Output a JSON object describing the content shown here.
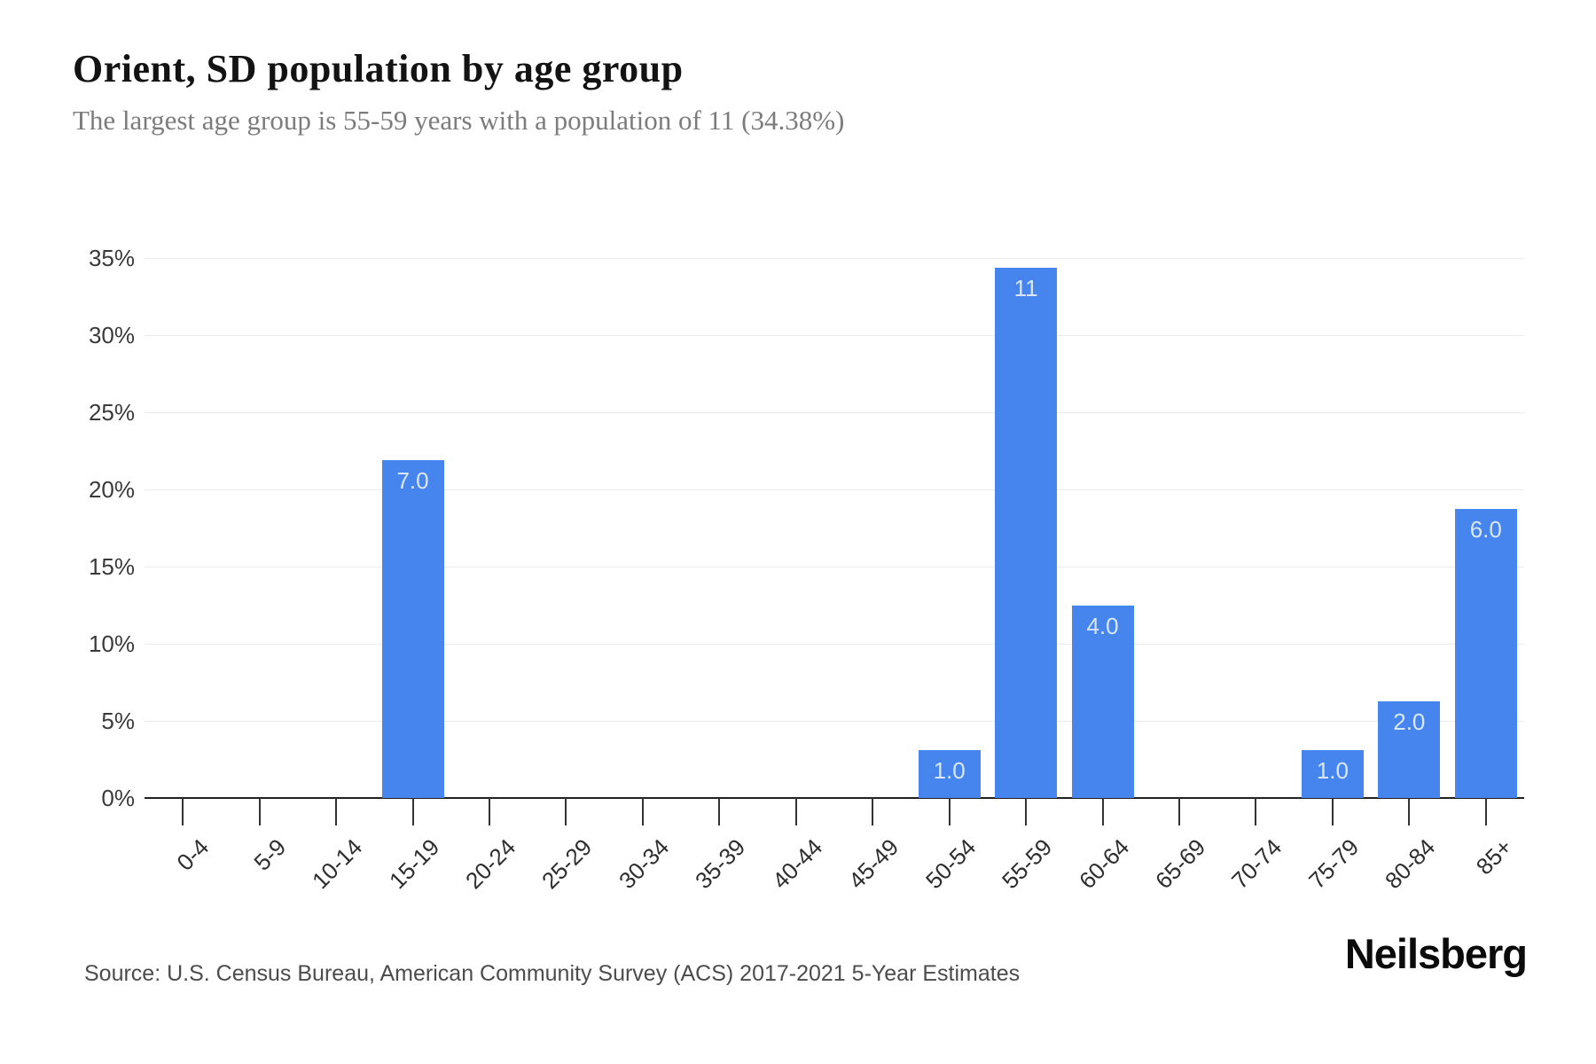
{
  "header": {
    "title": "Orient, SD population by age group",
    "subtitle": "The largest age group is 55-59 years with a population of 11 (34.38%)"
  },
  "footer": {
    "source": "Source: U.S. Census Bureau, American Community Survey (ACS) 2017-2021 5-Year Estimates",
    "brand": "Neilsberg"
  },
  "colors": {
    "bar": "#4685ee",
    "bar_label": "#d9e7fb",
    "grid": "#ececec",
    "axis": "#212121",
    "tick": "#333333",
    "axis_label": "#3a3a3a",
    "title": "#131313",
    "subtitle": "#7c7c7c",
    "source": "#4c4c4c"
  },
  "chart_data": {
    "type": "bar",
    "title": "Orient, SD population by age group",
    "subtitle": "The largest age group is 55-59 years with a population of 11 (34.38%)",
    "xlabel": "",
    "ylabel": "",
    "categories": [
      "0-4",
      "5-9",
      "10-14",
      "15-19",
      "20-24",
      "25-29",
      "30-34",
      "35-39",
      "40-44",
      "45-49",
      "50-54",
      "55-59",
      "60-64",
      "65-69",
      "70-74",
      "75-79",
      "80-84",
      "85+"
    ],
    "values": [
      0,
      0,
      0,
      7,
      0,
      0,
      0,
      0,
      0,
      0,
      1,
      11,
      4,
      0,
      0,
      1,
      2,
      6
    ],
    "percentages": [
      0,
      0,
      0,
      21.875,
      0,
      0,
      0,
      0,
      0,
      0,
      3.125,
      34.375,
      12.5,
      0,
      0,
      3.125,
      6.25,
      18.75
    ],
    "bar_labels": [
      "",
      "",
      "",
      "7.0",
      "",
      "",
      "",
      "",
      "",
      "",
      "1.0",
      "11",
      "4.0",
      "",
      "",
      "1.0",
      "2.0",
      "6.0"
    ],
    "y_ticks": [
      "0%",
      "5%",
      "10%",
      "15%",
      "20%",
      "25%",
      "30%",
      "35%"
    ],
    "y_tick_values": [
      0,
      5,
      10,
      15,
      20,
      25,
      30,
      35
    ],
    "ylim": [
      0,
      35
    ],
    "grid": true,
    "legend": "none"
  }
}
